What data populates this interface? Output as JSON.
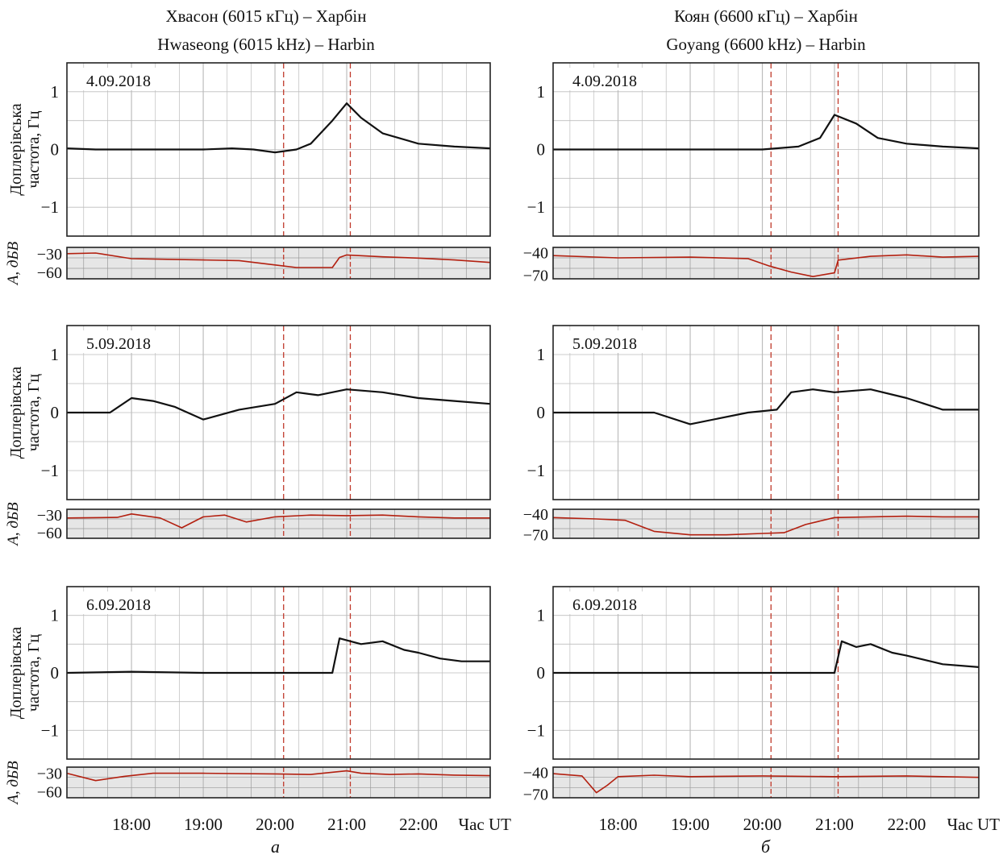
{
  "titles": {
    "left_line1": "Хвасон (6015 кГц) – Харбін",
    "left_line2": "Hwaseong (6015 kHz) – Harbin",
    "right_line1": "Коян (6600 кГц) – Харбін",
    "right_line2": "Goyang (6600 kHz) – Harbin"
  },
  "column_labels": {
    "left": "а",
    "right": "б"
  },
  "axes": {
    "doppler_ylabel_line1": "Доплерівська",
    "doppler_ylabel_line2": "частота, Гц",
    "amp_ylabel": "A, дБВ",
    "x_unit": "Час UT",
    "x_ticks": [
      "18:00",
      "19:00",
      "20:00",
      "21:00",
      "22:00"
    ],
    "doppler_ticks": [
      "1",
      "0",
      "−1"
    ]
  },
  "colors": {
    "doppler": "#111111",
    "amplitude": "#b32010",
    "marker": "#c0392b",
    "grid": "#999999"
  },
  "chart_data": [
    {
      "type": "line",
      "title": "4.09.2018",
      "column": "left",
      "xlim": [
        17.1,
        23.0
      ],
      "doppler": {
        "ylim": [
          -1.5,
          1.5
        ],
        "x": [
          17.1,
          17.5,
          18.0,
          18.5,
          19.0,
          19.4,
          19.7,
          20.0,
          20.3,
          20.5,
          20.8,
          21.0,
          21.2,
          21.5,
          22.0,
          22.5,
          23.0
        ],
        "y": [
          0.02,
          0.0,
          0.0,
          0.0,
          0.0,
          0.02,
          0.0,
          -0.05,
          0.0,
          0.1,
          0.5,
          0.8,
          0.55,
          0.28,
          0.1,
          0.05,
          0.02
        ]
      },
      "amplitude": {
        "yticks": [
          "−30",
          "−60"
        ],
        "ylim": [
          -70,
          -20
        ],
        "x": [
          17.1,
          17.5,
          18.0,
          18.5,
          19.0,
          19.5,
          20.0,
          20.3,
          20.8,
          20.9,
          21.0,
          21.5,
          22.0,
          22.5,
          23.0
        ],
        "y": [
          -30,
          -29,
          -38,
          -39,
          -40,
          -41,
          -48,
          -52,
          -52,
          -36,
          -32,
          -35,
          -37,
          -40,
          -44
        ]
      },
      "markers": [
        20.12,
        21.05
      ]
    },
    {
      "type": "line",
      "title": "4.09.2018",
      "column": "right",
      "xlim": [
        17.1,
        23.0
      ],
      "doppler": {
        "ylim": [
          -1.5,
          1.5
        ],
        "x": [
          17.1,
          18.0,
          19.0,
          20.0,
          20.5,
          20.8,
          21.0,
          21.3,
          21.6,
          22.0,
          22.5,
          23.0
        ],
        "y": [
          0.0,
          0.0,
          0.0,
          0.0,
          0.05,
          0.2,
          0.6,
          0.45,
          0.2,
          0.1,
          0.05,
          0.02
        ]
      },
      "amplitude": {
        "yticks": [
          "−40",
          "−70"
        ],
        "ylim": [
          -75,
          -33
        ],
        "x": [
          17.1,
          18.0,
          19.0,
          19.8,
          20.1,
          20.4,
          20.7,
          21.0,
          21.05,
          21.5,
          22.0,
          22.5,
          23.0
        ],
        "y": [
          -44,
          -47,
          -46,
          -48,
          -58,
          -66,
          -72,
          -67,
          -50,
          -45,
          -43,
          -46,
          -45
        ]
      },
      "markers": [
        20.12,
        21.05
      ]
    },
    {
      "type": "line",
      "title": "5.09.2018",
      "column": "left",
      "xlim": [
        17.1,
        23.0
      ],
      "doppler": {
        "ylim": [
          -1.5,
          1.5
        ],
        "x": [
          17.1,
          17.7,
          18.0,
          18.3,
          18.6,
          19.0,
          19.5,
          20.0,
          20.3,
          20.6,
          21.0,
          21.5,
          22.0,
          22.5,
          23.0
        ],
        "y": [
          0.0,
          0.0,
          0.25,
          0.2,
          0.1,
          -0.12,
          0.05,
          0.15,
          0.35,
          0.3,
          0.4,
          0.35,
          0.25,
          0.2,
          0.15
        ]
      },
      "amplitude": {
        "yticks": [
          "−30",
          "−60"
        ],
        "ylim": [
          -70,
          -20
        ],
        "x": [
          17.1,
          17.8,
          18.0,
          18.4,
          18.7,
          19.0,
          19.3,
          19.6,
          20.0,
          20.5,
          21.0,
          21.5,
          22.0,
          22.5,
          23.0
        ],
        "y": [
          -35,
          -34,
          -28,
          -35,
          -52,
          -33,
          -30,
          -42,
          -33,
          -30,
          -31,
          -30,
          -33,
          -35,
          -35
        ]
      },
      "markers": [
        20.12,
        21.05
      ]
    },
    {
      "type": "line",
      "title": "5.09.2018",
      "column": "right",
      "xlim": [
        17.1,
        23.0
      ],
      "doppler": {
        "ylim": [
          -1.5,
          1.5
        ],
        "x": [
          17.1,
          18.0,
          18.5,
          19.0,
          19.4,
          19.8,
          20.2,
          20.4,
          20.7,
          21.0,
          21.5,
          22.0,
          22.5,
          23.0
        ],
        "y": [
          0.0,
          0.0,
          0.0,
          -0.2,
          -0.1,
          0.0,
          0.05,
          0.35,
          0.4,
          0.35,
          0.4,
          0.25,
          0.05,
          0.05
        ]
      },
      "amplitude": {
        "yticks": [
          "−40",
          "−70"
        ],
        "ylim": [
          -75,
          -33
        ],
        "x": [
          17.1,
          17.7,
          18.1,
          18.5,
          19.0,
          19.5,
          20.0,
          20.3,
          20.6,
          21.0,
          21.5,
          22.0,
          22.5,
          23.0
        ],
        "y": [
          -45,
          -47,
          -49,
          -65,
          -70,
          -70,
          -68,
          -67,
          -55,
          -45,
          -44,
          -43,
          -44,
          -44
        ]
      },
      "markers": [
        20.12,
        21.05
      ]
    },
    {
      "type": "line",
      "title": "6.09.2018",
      "column": "left",
      "xlim": [
        17.1,
        23.0
      ],
      "doppler": {
        "ylim": [
          -1.5,
          1.5
        ],
        "x": [
          17.1,
          18.0,
          19.0,
          20.0,
          20.8,
          20.9,
          21.2,
          21.5,
          21.8,
          22.0,
          22.3,
          22.6,
          23.0
        ],
        "y": [
          0.0,
          0.02,
          0.0,
          0.0,
          0.0,
          0.6,
          0.5,
          0.55,
          0.4,
          0.35,
          0.25,
          0.2,
          0.2
        ]
      },
      "amplitude": {
        "yticks": [
          "−30",
          "−60"
        ],
        "ylim": [
          -70,
          -20
        ],
        "x": [
          17.1,
          17.5,
          17.9,
          18.3,
          19.0,
          20.0,
          20.5,
          21.0,
          21.2,
          21.6,
          22.0,
          22.5,
          23.0
        ],
        "y": [
          -30,
          -42,
          -35,
          -30,
          -30,
          -31,
          -32,
          -26,
          -30,
          -32,
          -31,
          -33,
          -34
        ]
      },
      "markers": [
        20.12,
        21.05
      ]
    },
    {
      "type": "line",
      "title": "6.09.2018",
      "column": "right",
      "xlim": [
        17.1,
        23.0
      ],
      "doppler": {
        "ylim": [
          -1.5,
          1.5
        ],
        "x": [
          17.1,
          18.0,
          19.0,
          20.0,
          21.0,
          21.1,
          21.3,
          21.5,
          21.8,
          22.0,
          22.5,
          23.0
        ],
        "y": [
          0.0,
          0.0,
          0.0,
          0.0,
          0.0,
          0.55,
          0.45,
          0.5,
          0.35,
          0.3,
          0.15,
          0.1
        ]
      },
      "amplitude": {
        "yticks": [
          "−40",
          "−70"
        ],
        "ylim": [
          -75,
          -33
        ],
        "x": [
          17.1,
          17.5,
          17.7,
          17.85,
          18.0,
          18.5,
          19.0,
          20.0,
          21.0,
          22.0,
          22.5,
          23.0
        ],
        "y": [
          -42,
          -45,
          -68,
          -58,
          -46,
          -44,
          -46,
          -45,
          -46,
          -45,
          -46,
          -47
        ]
      },
      "markers": [
        20.12,
        21.05
      ]
    }
  ]
}
